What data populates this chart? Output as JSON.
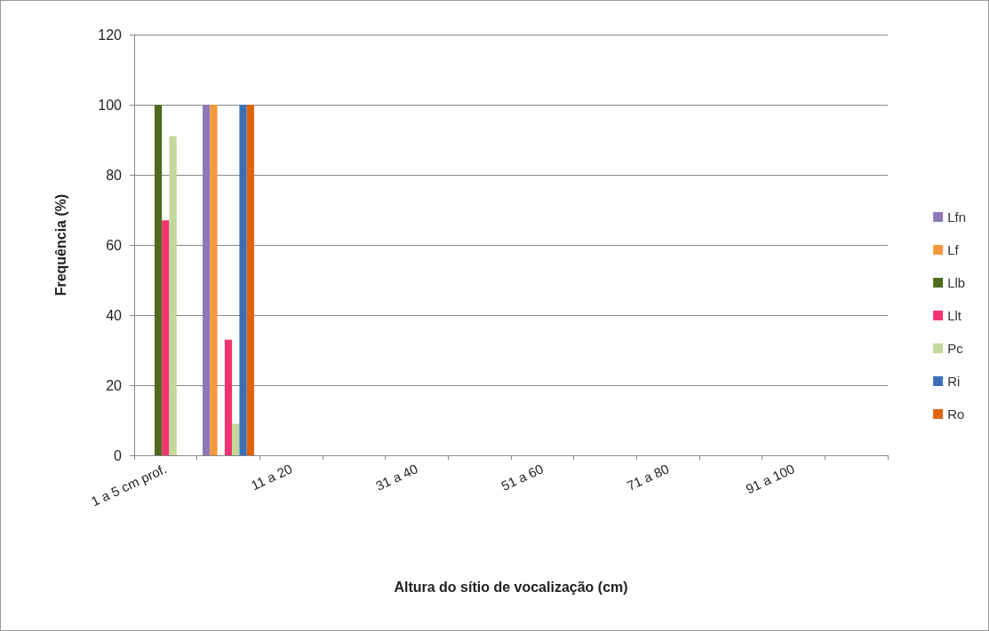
{
  "chart_data": {
    "type": "bar",
    "xlabel": "Altura do sítio de vocalização (cm)",
    "ylabel": "Frequência (%)",
    "categories": [
      "1 a 5 cm prof.",
      null,
      "11 a 20",
      null,
      "31 a 40",
      null,
      "51 a 60",
      null,
      "71 a 80",
      null,
      "91 a 100",
      null
    ],
    "series": [
      {
        "name": "Lfn",
        "color": "#8c78b4",
        "values": [
          null,
          100,
          null,
          null,
          null,
          null,
          null,
          null,
          null,
          null,
          null,
          null
        ]
      },
      {
        "name": "Lf",
        "color": "#f59a3c",
        "values": [
          null,
          100,
          null,
          null,
          null,
          null,
          null,
          null,
          null,
          null,
          null,
          null
        ]
      },
      {
        "name": "Llb",
        "color": "#4f6b1f",
        "values": [
          100,
          null,
          null,
          null,
          null,
          null,
          null,
          null,
          null,
          null,
          null,
          null
        ]
      },
      {
        "name": "Llt",
        "color": "#f0356e",
        "values": [
          67,
          33,
          null,
          null,
          null,
          null,
          null,
          null,
          null,
          null,
          null,
          null
        ]
      },
      {
        "name": "Pc",
        "color": "#c3d89a",
        "values": [
          91,
          9,
          null,
          null,
          null,
          null,
          null,
          null,
          null,
          null,
          null,
          null
        ]
      },
      {
        "name": "Ri",
        "color": "#3b6fb5",
        "values": [
          null,
          100,
          null,
          null,
          null,
          null,
          null,
          null,
          null,
          null,
          null,
          null
        ]
      },
      {
        "name": "Ro",
        "color": "#e0640f",
        "values": [
          null,
          100,
          null,
          null,
          null,
          null,
          null,
          null,
          null,
          null,
          null,
          null
        ]
      }
    ],
    "ylim": [
      0,
      120
    ],
    "yticks": [
      0,
      20,
      40,
      60,
      80,
      100,
      120
    ],
    "grid": "y",
    "legend": "right"
  }
}
